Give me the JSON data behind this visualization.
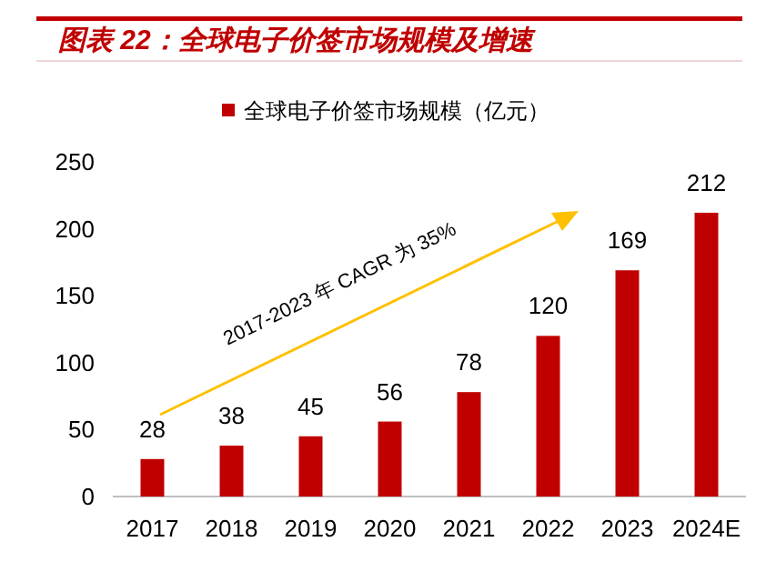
{
  "chart_data": {
    "type": "bar",
    "title": "图表 22：全球电子价签市场规模及增速",
    "categories": [
      "2017",
      "2018",
      "2019",
      "2020",
      "2021",
      "2022",
      "2023",
      "2024E"
    ],
    "series": [
      {
        "name": "全球电子价签市场规模（亿元）",
        "color": "#c00000",
        "values": [
          28,
          38,
          45,
          56,
          78,
          120,
          169,
          212
        ]
      }
    ],
    "ylim": [
      0,
      250
    ],
    "yticks": [
      0,
      50,
      100,
      150,
      200,
      250
    ],
    "grid": false,
    "legend": "top",
    "data_labels": true,
    "annotations": [
      "2017-2023 年 CAGR 为 35%"
    ]
  }
}
